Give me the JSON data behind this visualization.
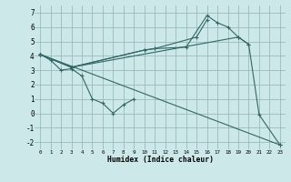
{
  "xlabel": "Humidex (Indice chaleur)",
  "ylabel": "",
  "background_color": "#cce8e8",
  "grid_color": "#99bbbb",
  "line_color": "#336666",
  "xlim": [
    -0.5,
    23.5
  ],
  "ylim": [
    -2.5,
    7.5
  ],
  "xticks": [
    0,
    1,
    2,
    3,
    4,
    5,
    6,
    7,
    8,
    9,
    10,
    11,
    12,
    13,
    14,
    15,
    16,
    17,
    18,
    19,
    20,
    21,
    22,
    23
  ],
  "yticks": [
    -2,
    -1,
    0,
    1,
    2,
    3,
    4,
    5,
    6,
    7
  ],
  "series": [
    {
      "x": [
        0,
        1,
        2,
        3,
        4,
        5,
        6,
        7,
        8,
        9
      ],
      "y": [
        4.1,
        3.7,
        3.0,
        3.1,
        2.6,
        1.0,
        0.7,
        0.0,
        0.6,
        1.0
      ]
    },
    {
      "x": [
        0,
        3,
        10,
        11,
        15,
        16
      ],
      "y": [
        4.1,
        3.2,
        4.4,
        4.5,
        5.3,
        6.5
      ]
    },
    {
      "x": [
        0,
        3,
        10,
        11,
        14,
        16,
        17,
        18,
        19,
        20
      ],
      "y": [
        4.1,
        3.2,
        4.4,
        4.5,
        4.6,
        6.8,
        6.3,
        6.0,
        5.3,
        4.8
      ]
    },
    {
      "x": [
        0,
        3,
        19,
        20,
        21,
        23
      ],
      "y": [
        4.1,
        3.2,
        5.3,
        4.8,
        -0.1,
        -2.2
      ]
    },
    {
      "x": [
        0,
        23
      ],
      "y": [
        4.1,
        -2.2
      ]
    }
  ]
}
